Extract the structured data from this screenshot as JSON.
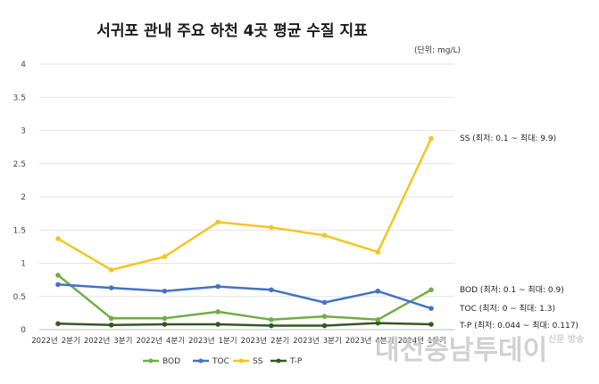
{
  "chart_data": {
    "type": "line",
    "title": "서귀포 관내 주요 하천 4곳 평균 수질 지표",
    "unit_note": "(단위: mg/L)",
    "categories": [
      "2022년 2분기",
      "2022년 3분기",
      "2022년 4분기",
      "2023년 1분기",
      "2023년 2분기",
      "2023년 3분기",
      "2023년 4분기",
      "2024년 1분기"
    ],
    "x_tick_text": [
      "2022년",
      "2분기",
      "2022년",
      "3분기",
      "2022년",
      "4분기",
      "2023년",
      "1분기",
      "2023년",
      "2분기",
      "2023년",
      "3분기",
      "2023년",
      "4분기",
      "2024년",
      "1분기"
    ],
    "yticks": [
      "0",
      "0.5",
      "1",
      "1.5",
      "2",
      "2.5",
      "3",
      "3.5",
      "4"
    ],
    "ylim": [
      0,
      4
    ],
    "grid": true,
    "legend_position": "bottom",
    "series": [
      {
        "name": "BOD",
        "color": "#70ad47",
        "values": [
          0.82,
          0.17,
          0.17,
          0.27,
          0.15,
          0.2,
          0.15,
          0.6
        ]
      },
      {
        "name": "TOC",
        "color": "#4472c4",
        "values": [
          0.68,
          0.63,
          0.58,
          0.65,
          0.6,
          0.41,
          0.58,
          0.32
        ]
      },
      {
        "name": "SS",
        "color": "#f4c51f",
        "values": [
          1.37,
          0.9,
          1.1,
          1.62,
          1.54,
          1.42,
          1.17,
          2.88
        ]
      },
      {
        "name": "T-P",
        "color": "#375623",
        "values": [
          0.09,
          0.07,
          0.08,
          0.08,
          0.06,
          0.06,
          0.1,
          0.08
        ]
      }
    ],
    "annotations": [
      {
        "text": "SS (최저: 0.1 ~ 최대: 9.9)",
        "y": 2.88
      },
      {
        "text": "BOD (최저: 0.1 ~ 최대: 0.9)",
        "y": 0.6
      },
      {
        "text": "TOC (최저: 0 ~ 최대: 1.3)",
        "y": 0.32
      },
      {
        "text": "T-P (최저: 0.044 ~ 최대: 0.117)",
        "y": 0.08
      }
    ]
  },
  "watermark": {
    "text": "대전충남투데이",
    "sub": "신문 방송"
  }
}
